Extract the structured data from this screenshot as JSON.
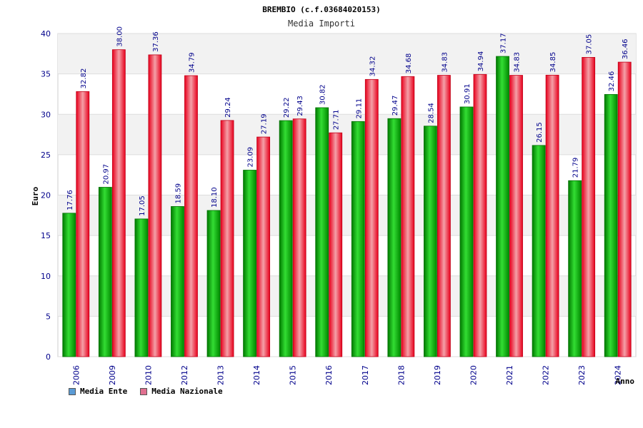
{
  "chart_data": {
    "type": "bar",
    "title": "BREMBIO (c.f.03684020153)",
    "subtitle": "Media Importi",
    "xlabel": "Anno",
    "ylabel": "Euro",
    "ylim": [
      0,
      40
    ],
    "yticks": [
      0,
      5,
      10,
      15,
      20,
      25,
      30,
      35,
      40
    ],
    "grid": true,
    "legend_position": "bottom-left",
    "categories": [
      "2006",
      "2009",
      "2010",
      "2012",
      "2013",
      "2014",
      "2015",
      "2016",
      "2017",
      "2018",
      "2019",
      "2020",
      "2021",
      "2022",
      "2023",
      "2024"
    ],
    "series": [
      {
        "name": "Media Ente",
        "color": "#00a000",
        "legend_color": "#5b9bd5",
        "values": [
          17.76,
          20.97,
          17.05,
          18.59,
          18.1,
          23.09,
          29.22,
          30.82,
          29.11,
          29.47,
          28.54,
          30.91,
          37.17,
          26.15,
          21.79,
          32.46
        ],
        "labels": [
          "17.76",
          "20.97",
          "17.05",
          "18.59",
          "18.10",
          "23.09",
          "29.22",
          "30.82",
          "29.11",
          "29.47",
          "28.54",
          "30.91",
          "37.17",
          "26.15",
          "21.79",
          "32.46"
        ]
      },
      {
        "name": "Media Nazionale",
        "color": "#e8001c",
        "legend_color": "#e07090",
        "values": [
          32.82,
          38.0,
          37.36,
          34.79,
          29.24,
          27.19,
          29.43,
          27.71,
          34.32,
          34.68,
          34.83,
          34.94,
          34.83,
          34.85,
          37.05,
          36.46
        ],
        "labels": [
          "32.82",
          "38.00",
          "37.36",
          "34.79",
          "29.24",
          "27.19",
          "29.43",
          "27.71",
          "34.32",
          "34.68",
          "34.83",
          "34.94",
          "34.83",
          "34.85",
          "37.05",
          "36.46"
        ]
      }
    ]
  }
}
